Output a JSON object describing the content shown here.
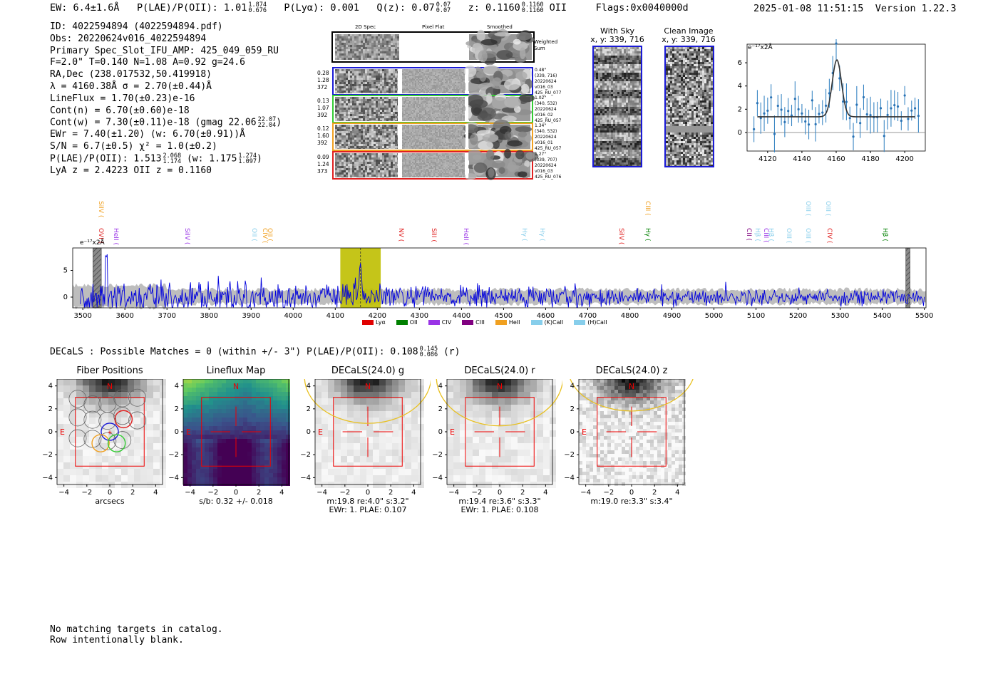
{
  "header": {
    "ew": "EW: 6.4±1.6Å",
    "plae_label": "P(LAE)/P(OII): 1.01",
    "plae_hi": "1.874",
    "plae_lo": "0.676",
    "plya": "P(Lyα): 0.001",
    "qz_label": "Q(z): 0.07",
    "qz_hi": "0.07",
    "qz_lo": "0.07",
    "z_label": "z: 0.1160",
    "z_hi": "0.1160",
    "z_lo": "0.1160",
    "z_line": "OII",
    "flags": "Flags:0x0040000d",
    "timestamp": "2025-01-08 11:51:15",
    "version": "Version 1.22.3"
  },
  "info": {
    "id": "ID: 4022594894 (4022594894.pdf)",
    "obs": "Obs: 20220624v016_4022594894",
    "slot": "Primary Spec_Slot_IFU_AMP: 425_049_059_RU",
    "params": "F=2.0\"  T=0.140  N=1.08  A=0.92  g=24.6",
    "radec": "RA,Dec (238.017532,50.419918)",
    "lambda": "λ = 4160.38Å   σ = 2.70(±0.44)Å",
    "lineflux": "LineFlux = 1.70(±0.23)e-16",
    "contn": "Cont(n) = 6.70(±0.60)e-18",
    "contw": "Cont(w) = 7.30(±0.11)e-18 (gmag 22.06",
    "contw_hi": "22.07",
    "contw_lo": "22.04",
    "contw_end": ")",
    "ewr": "EWr = 7.40(±1.20) (w: 6.70(±0.91))Å",
    "sn": "S/N = 6.7(±0.5)  χ² = 1.0(±0.2)",
    "plae": "P(LAE)/P(OII): 1.513",
    "plae_hi": "2.068",
    "plae_lo": "1.174",
    "plae_w": "(w: 1.175",
    "plae_w_hi": "1.274",
    "plae_w_lo": "1.097",
    "plae_w_end": ")",
    "lyaz": "LyA z = 2.4223   OII z = 0.1160"
  },
  "cutouts": {
    "col_2d": "2D Spec",
    "col_flat": "Pixel Flat",
    "col_smooth": "Smoothed",
    "weighted_sum": "Weighted Sum",
    "rows": [
      {
        "v1": "0.28",
        "v2": "1.28",
        "v3": "372",
        "pos": "0.48\"",
        "xy": "(339, 716)",
        "date": "20220624",
        "shot": "v016_03",
        "amp": "425_RU_077",
        "color": "#1a1ad6"
      },
      {
        "v1": "0.13",
        "v2": "1.07",
        "v3": "392",
        "pos": "1.02\"",
        "xy": "(340, 532)",
        "date": "20220624",
        "shot": "v016_02",
        "amp": "425_RU_057",
        "color": "#33cc33"
      },
      {
        "v1": "0.12",
        "v2": "1.60",
        "v3": "392",
        "pos": "1.34\"",
        "xy": "(340, 532)",
        "date": "20220624",
        "shot": "v016_01",
        "amp": "425_RU_057",
        "color": "#f0a020"
      },
      {
        "v1": "0.09",
        "v2": "1.24",
        "v3": "373",
        "pos": "1.27\"",
        "xy": "(339, 707)",
        "date": "20220624",
        "shot": "v016_03",
        "amp": "425_RU_076",
        "color": "#e02020"
      }
    ]
  },
  "sky": {
    "with_sky_title": "With Sky",
    "with_sky_xy": "x, y: 339, 716",
    "clean_title": "Clean Image",
    "clean_xy": "x, y: 339, 716"
  },
  "zoom_plot": {
    "unit": "e⁻¹⁷x2Å",
    "x_ticks": [
      "4120",
      "4140",
      "4160",
      "4180",
      "4200"
    ],
    "y_ticks": [
      "0",
      "2",
      "4",
      "6"
    ]
  },
  "spectrum": {
    "unit": "e⁻¹⁷x2Å",
    "x_ticks": [
      "3500",
      "3600",
      "3700",
      "3800",
      "3900",
      "4000",
      "4100",
      "4200",
      "4300",
      "4400",
      "4500",
      "4600",
      "4700",
      "4800",
      "4900",
      "5000",
      "5100",
      "5200",
      "5300",
      "5400",
      "5500"
    ],
    "y_ticks": [
      "0",
      "5"
    ],
    "line_labels": [
      {
        "t": "SiIV",
        "c": "#f0a020",
        "w": 3543,
        "row": 0
      },
      {
        "t": "OVI",
        "c": "#e02020",
        "w": 3544,
        "row": 1
      },
      {
        "t": "HeII",
        "c": "#9933e6",
        "w": 3580,
        "row": 1
      },
      {
        "t": "SiIV",
        "c": "#9933e6",
        "w": 3748,
        "row": 1
      },
      {
        "t": "OII",
        "c": "#87ceeb",
        "w": 3908,
        "row": 1
      },
      {
        "t": "CIV",
        "c": "#f0a020",
        "w": 3934,
        "row": 1
      },
      {
        "t": "OII",
        "c": "#f0a020",
        "w": 3945,
        "row": 1
      },
      {
        "t": "NV",
        "c": "#e02020",
        "w": 4257,
        "row": 1
      },
      {
        "t": "SiII",
        "c": "#e02020",
        "w": 4335,
        "row": 1
      },
      {
        "t": "HeII",
        "c": "#9933e6",
        "w": 4411,
        "row": 1
      },
      {
        "t": "Hγ",
        "c": "#87ceeb",
        "w": 4550,
        "row": 1
      },
      {
        "t": "Hγ",
        "c": "#87ceeb",
        "w": 4592,
        "row": 1
      },
      {
        "t": "SiIV",
        "c": "#e02020",
        "w": 4780,
        "row": 1
      },
      {
        "t": "CIII",
        "c": "#f0a020",
        "w": 4843,
        "row": 0
      },
      {
        "t": "Hγ",
        "c": "#008000",
        "w": 4844,
        "row": 1
      },
      {
        "t": "CII",
        "c": "#800080",
        "w": 5083,
        "row": 1
      },
      {
        "t": "Hβ",
        "c": "#87ceeb",
        "w": 5105,
        "row": 1
      },
      {
        "t": "CIII",
        "c": "#9933e6",
        "w": 5125,
        "row": 1
      },
      {
        "t": "Hβ",
        "c": "#87ceeb",
        "w": 5137,
        "row": 1
      },
      {
        "t": "OIII",
        "c": "#87ceeb",
        "w": 5178,
        "row": 1
      },
      {
        "t": "OIII",
        "c": "#87ceeb",
        "w": 5225,
        "row": 0
      },
      {
        "t": "OIII",
        "c": "#87ceeb",
        "w": 5225,
        "row": 1
      },
      {
        "t": "OIII",
        "c": "#87ceeb",
        "w": 5272,
        "row": 0
      },
      {
        "t": "CIV",
        "c": "#e02020",
        "w": 5276,
        "row": 1
      },
      {
        "t": "Hβ",
        "c": "#008000",
        "w": 5408,
        "row": 1
      }
    ],
    "legend": [
      {
        "label": "Lyα",
        "color": "#e00000"
      },
      {
        "label": "OII",
        "color": "#008000"
      },
      {
        "label": "CIV",
        "color": "#9933e6"
      },
      {
        "label": "CIII",
        "color": "#800080"
      },
      {
        "label": "HeII",
        "color": "#f0a020"
      },
      {
        "label": "(K)CaII",
        "color": "#87ceeb"
      },
      {
        "label": "(H)CaII",
        "color": "#87ceeb"
      }
    ]
  },
  "decals": {
    "summary": "DECaLS : Possible Matches = 0 (within +/- 3\")  P(LAE)/P(OII): 0.108",
    "summary_hi": "0.145",
    "summary_lo": "0.086",
    "summary_end": "(r)",
    "north_label": "N",
    "east_label": "E",
    "panels": [
      {
        "title": "Fiber Positions",
        "caption1": "arcsecs",
        "caption2": ""
      },
      {
        "title": "Lineflux Map",
        "caption1": "s/b: 0.32 +/- 0.018",
        "caption2": ""
      },
      {
        "title": "DECaLS(24.0) g",
        "caption1": "m:19.8  re:4.0\"  s:3.2\"",
        "caption2": "EWr: 1. PLAE: 0.107"
      },
      {
        "title": "DECaLS(24.0) r",
        "caption1": "m:19.4  re:3.6\"  s:3.3\"",
        "caption2": "EWr: 1. PLAE: 0.108"
      },
      {
        "title": "DECaLS(24.0) z",
        "caption1": "m:19.0  re:3.3\"  s:3.4\"",
        "caption2": ""
      }
    ],
    "axis_ticks": [
      "−4",
      "−2",
      "0",
      "2",
      "4"
    ],
    "y_ticks": [
      "4",
      "2",
      "0",
      "−2",
      "−4"
    ]
  },
  "footer": {
    "line1": "No matching targets in catalog.",
    "line2": "Row intentionally blank."
  }
}
